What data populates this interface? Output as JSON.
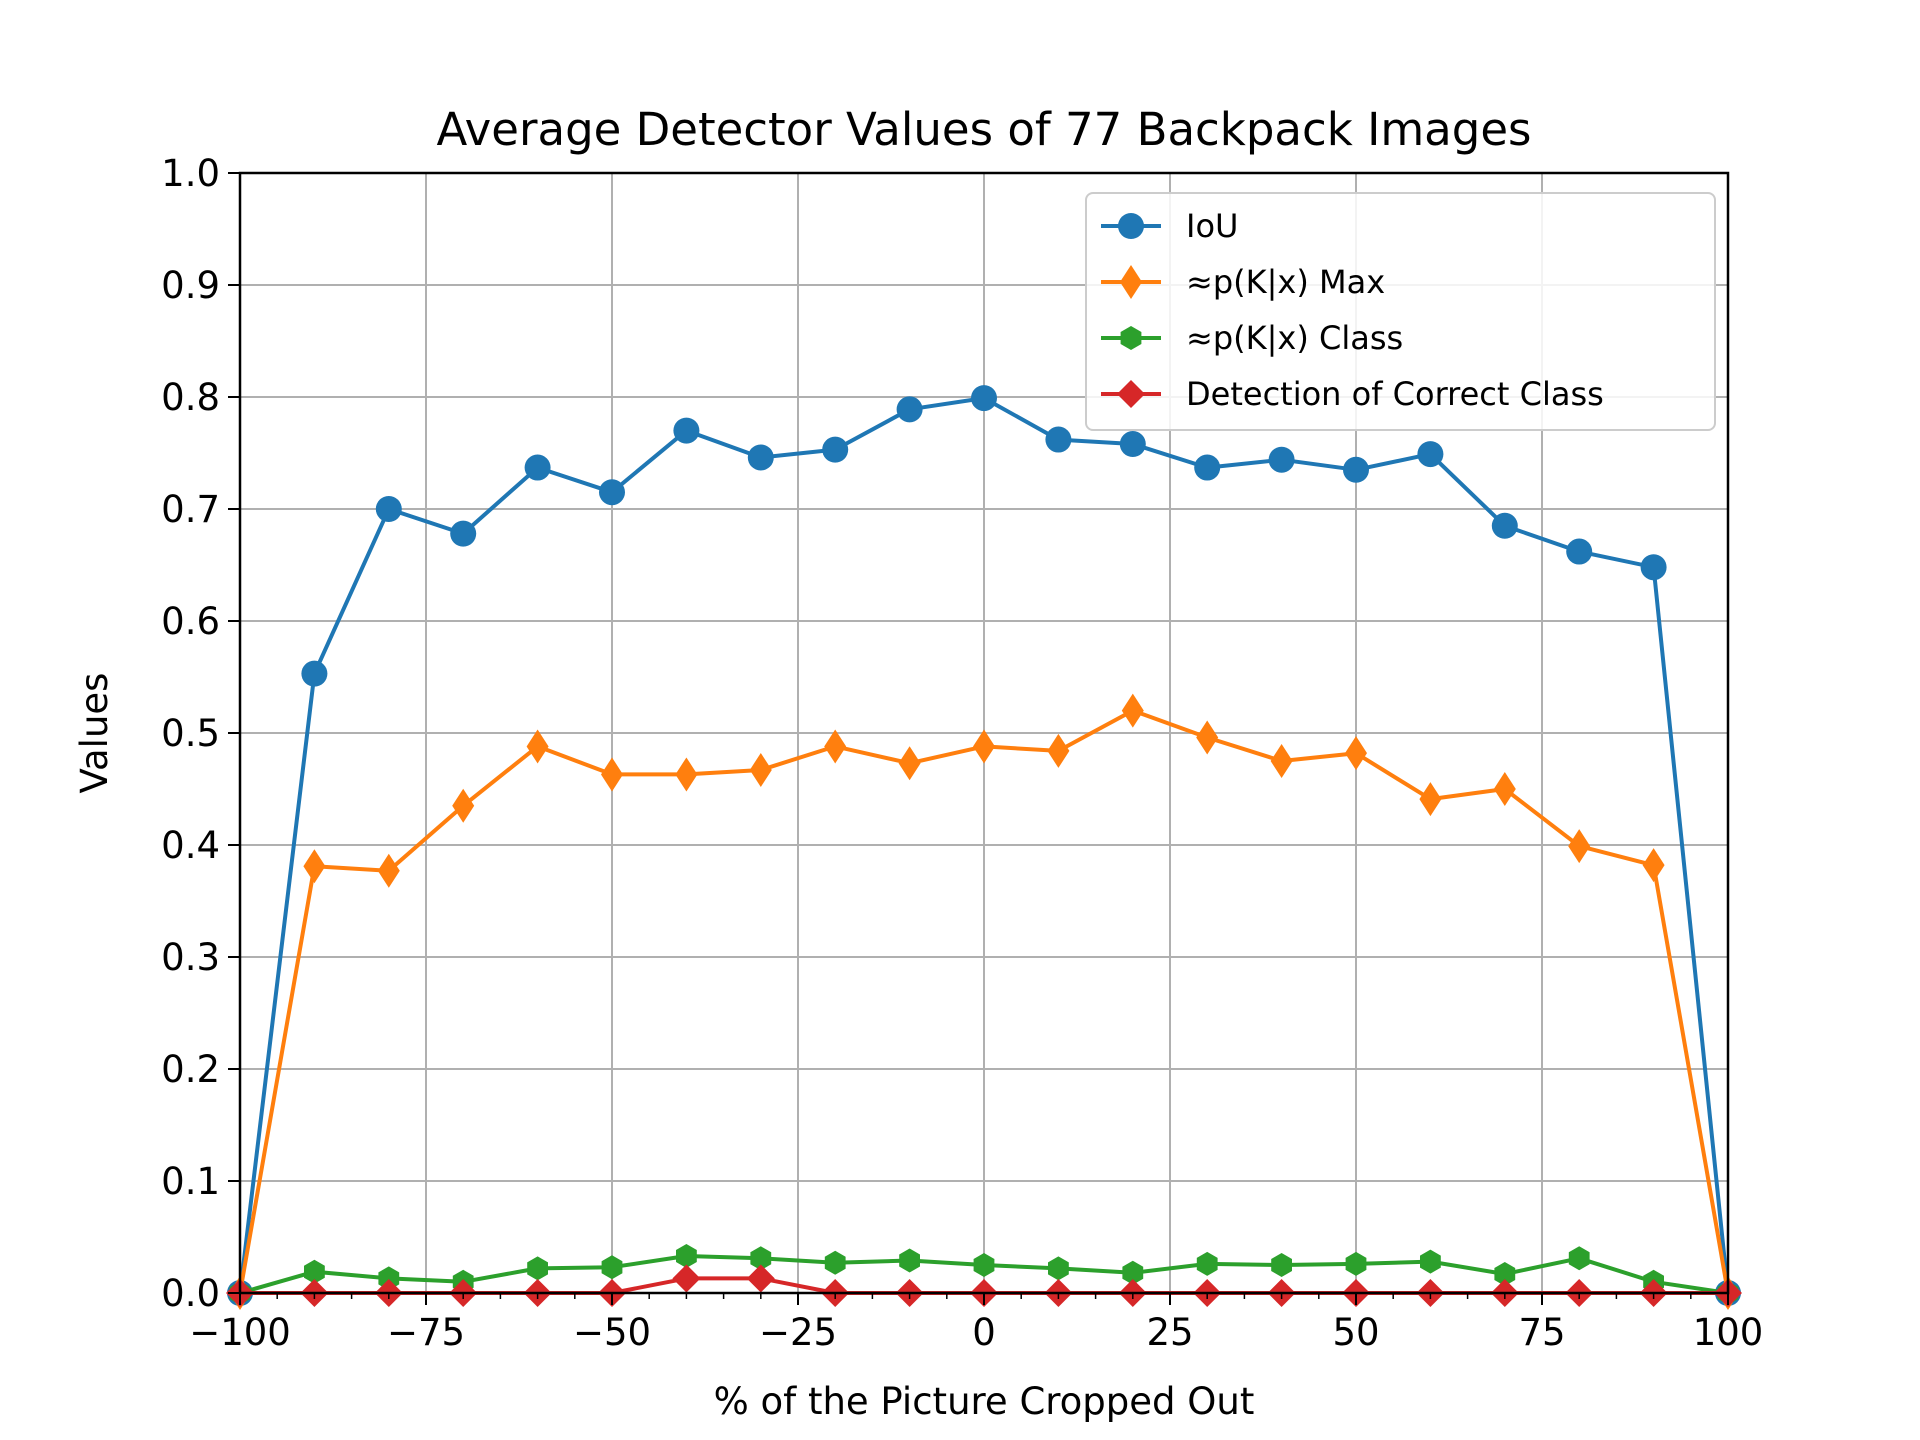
{
  "chart_data": {
    "type": "line",
    "title": "Average Detector Values of 77 Backpack Images",
    "xlabel": "% of the Picture Cropped Out",
    "ylabel": "Values",
    "xlim": [
      -100,
      100
    ],
    "ylim": [
      0,
      1.0
    ],
    "grid": true,
    "legend_position": "top-right",
    "x_ticks": [
      "−100",
      "−75",
      "−50",
      "−25",
      "0",
      "25",
      "50",
      "75",
      "100"
    ],
    "y_ticks": [
      "0.0",
      "0.1",
      "0.2",
      "0.3",
      "0.4",
      "0.5",
      "0.6",
      "0.7",
      "0.8",
      "0.9",
      "1.0"
    ],
    "x": [
      -100,
      -90,
      -80,
      -70,
      -60,
      -50,
      -40,
      -30,
      -20,
      -10,
      0,
      10,
      20,
      30,
      40,
      50,
      60,
      70,
      80,
      90,
      100
    ],
    "series": [
      {
        "name": "IoU",
        "color": "#1f77b4",
        "marker": "circle",
        "values": [
          0.0,
          0.553,
          0.7,
          0.678,
          0.737,
          0.715,
          0.77,
          0.746,
          0.753,
          0.789,
          0.799,
          0.762,
          0.758,
          0.737,
          0.744,
          0.735,
          0.749,
          0.685,
          0.662,
          0.648,
          0.0
        ]
      },
      {
        "name": "≈p(K|x) Max",
        "color": "#ff7f0e",
        "marker": "thin-diamond",
        "values": [
          0.0,
          0.381,
          0.377,
          0.435,
          0.488,
          0.463,
          0.463,
          0.467,
          0.488,
          0.473,
          0.488,
          0.484,
          0.52,
          0.496,
          0.475,
          0.482,
          0.441,
          0.45,
          0.399,
          0.382,
          0.0
        ]
      },
      {
        "name": "≈p(K|x) Class",
        "color": "#2ca02c",
        "marker": "hexagon",
        "values": [
          0.0,
          0.019,
          0.013,
          0.01,
          0.022,
          0.023,
          0.033,
          0.031,
          0.027,
          0.029,
          0.025,
          0.022,
          0.018,
          0.026,
          0.025,
          0.026,
          0.028,
          0.017,
          0.031,
          0.01,
          0.0
        ]
      },
      {
        "name": "Detection of Correct Class",
        "color": "#d62728",
        "marker": "diamond",
        "values": [
          0.0,
          0.0,
          0.0,
          0.0,
          0.0,
          0.0,
          0.013,
          0.013,
          0.0,
          0.0,
          0.0,
          0.0,
          0.0,
          0.0,
          0.0,
          0.0,
          0.0,
          0.0,
          0.0,
          0.0,
          0.0
        ]
      }
    ]
  }
}
